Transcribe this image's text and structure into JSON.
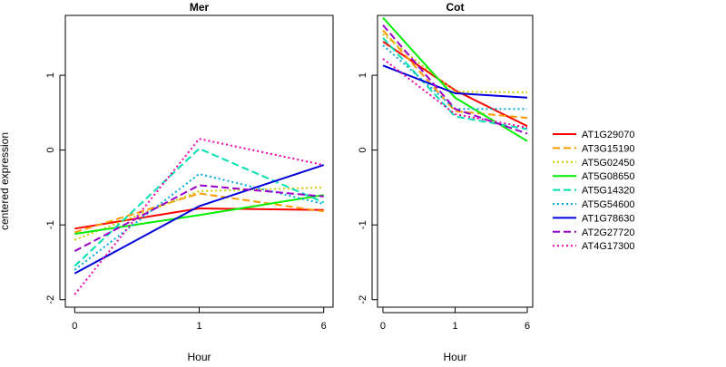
{
  "figure": {
    "ylabel": "centered expression"
  },
  "chart_data": [
    {
      "type": "line",
      "title": "Mer",
      "xlabel": "Hour",
      "ylabel": "centered expression",
      "categories": [
        "0",
        "1",
        "6"
      ],
      "ylim": [
        -2.1,
        1.8
      ],
      "yticks": [
        -2,
        -1,
        0,
        1
      ],
      "ytick_labels": [
        "-2",
        "-1",
        "0",
        "1"
      ],
      "grid": false,
      "series": [
        {
          "name": "AT1G29070",
          "color": "#ff0000",
          "dash": "solid",
          "values": [
            -1.05,
            -0.78,
            -0.8
          ]
        },
        {
          "name": "AT3G15190",
          "color": "#ff9900",
          "dash": "dashed",
          "values": [
            -1.1,
            -0.58,
            -0.82
          ]
        },
        {
          "name": "AT5G02450",
          "color": "#cccc00",
          "dash": "dotted",
          "values": [
            -1.2,
            -0.55,
            -0.5
          ]
        },
        {
          "name": "AT5G08650",
          "color": "#00ee00",
          "dash": "solid",
          "values": [
            -1.12,
            -0.87,
            -0.6
          ]
        },
        {
          "name": "AT5G14320",
          "color": "#00e0b0",
          "dash": "dashed",
          "values": [
            -1.55,
            0.02,
            -0.7
          ]
        },
        {
          "name": "AT5G54600",
          "color": "#00aadd",
          "dash": "dotted",
          "values": [
            -1.6,
            -0.32,
            -0.72
          ]
        },
        {
          "name": "AT1G78630",
          "color": "#0000dd",
          "dash": "solid",
          "values": [
            -1.65,
            -0.75,
            -0.2
          ]
        },
        {
          "name": "AT2G27720",
          "color": "#9900cc",
          "dash": "dashed",
          "values": [
            -1.35,
            -0.47,
            -0.62
          ]
        },
        {
          "name": "AT4G17300",
          "color": "#ee00aa",
          "dash": "dotted",
          "values": [
            -1.93,
            0.15,
            -0.2
          ]
        }
      ]
    },
    {
      "type": "line",
      "title": "Cot",
      "xlabel": "Hour",
      "ylabel": "",
      "categories": [
        "0",
        "1",
        "6"
      ],
      "ylim": [
        -2.1,
        1.8
      ],
      "yticks": [
        -2,
        -1,
        0,
        1
      ],
      "ytick_labels": [
        "-2",
        "-1",
        "0",
        "1"
      ],
      "grid": false,
      "series": [
        {
          "name": "AT1G29070",
          "color": "#ff0000",
          "dash": "solid",
          "values": [
            1.45,
            0.8,
            0.32
          ]
        },
        {
          "name": "AT3G15190",
          "color": "#ff9900",
          "dash": "dashed",
          "values": [
            1.6,
            0.52,
            0.43
          ]
        },
        {
          "name": "AT5G02450",
          "color": "#cccc00",
          "dash": "dotted",
          "values": [
            1.55,
            0.78,
            0.77
          ]
        },
        {
          "name": "AT5G08650",
          "color": "#00ee00",
          "dash": "solid",
          "values": [
            1.77,
            0.7,
            0.12
          ]
        },
        {
          "name": "AT5G14320",
          "color": "#00e0b0",
          "dash": "dashed",
          "values": [
            1.5,
            0.45,
            0.28
          ]
        },
        {
          "name": "AT5G54600",
          "color": "#00aadd",
          "dash": "dotted",
          "values": [
            1.4,
            0.55,
            0.55
          ]
        },
        {
          "name": "AT1G78630",
          "color": "#0000dd",
          "dash": "solid",
          "values": [
            1.13,
            0.76,
            0.7
          ]
        },
        {
          "name": "AT2G27720",
          "color": "#9900cc",
          "dash": "dashed",
          "values": [
            1.67,
            0.55,
            0.22
          ]
        },
        {
          "name": "AT4G17300",
          "color": "#ee00aa",
          "dash": "dotted",
          "values": [
            1.22,
            0.48,
            0.3
          ]
        }
      ]
    }
  ],
  "legend": {
    "placement": "right",
    "items": [
      {
        "label": "AT1G29070",
        "color": "#ff0000",
        "dash": "solid"
      },
      {
        "label": "AT3G15190",
        "color": "#ff9900",
        "dash": "dashed"
      },
      {
        "label": "AT5G02450",
        "color": "#cccc00",
        "dash": "dotted"
      },
      {
        "label": "AT5G08650",
        "color": "#00ee00",
        "dash": "solid"
      },
      {
        "label": "AT5G14320",
        "color": "#00e0b0",
        "dash": "dashed"
      },
      {
        "label": "AT5G54600",
        "color": "#00aadd",
        "dash": "dotted"
      },
      {
        "label": "AT1G78630",
        "color": "#0000dd",
        "dash": "solid"
      },
      {
        "label": "AT2G27720",
        "color": "#9900cc",
        "dash": "dashed"
      },
      {
        "label": "AT4G17300",
        "color": "#ee00aa",
        "dash": "dotted"
      }
    ]
  }
}
